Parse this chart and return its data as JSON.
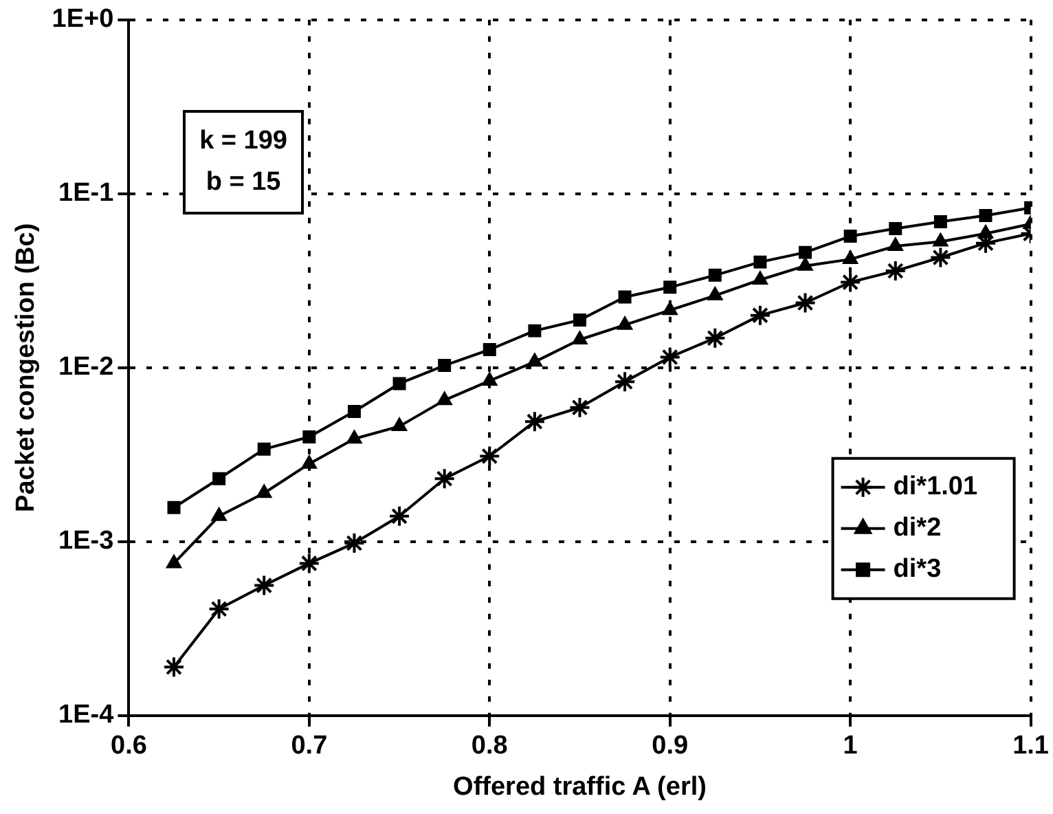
{
  "chart_data": {
    "type": "line",
    "xlabel": "Offered traffic A (erl)",
    "ylabel": "Packet congestion (Bc)",
    "annotations": [
      "k = 199",
      "b = 15"
    ],
    "x": [
      0.625,
      0.65,
      0.675,
      0.7,
      0.725,
      0.75,
      0.775,
      0.8,
      0.825,
      0.85,
      0.875,
      0.9,
      0.925,
      0.95,
      0.975,
      1.0,
      1.025,
      1.05,
      1.075,
      1.1
    ],
    "series": [
      {
        "name": "di*1.01",
        "color": "#000000",
        "marker": "cross",
        "values": [
          0.00019,
          0.00041,
          0.00056,
          0.00075,
          0.00098,
          0.0014,
          0.0023,
          0.0031,
          0.0049,
          0.0059,
          0.0083,
          0.0115,
          0.0148,
          0.02,
          0.0236,
          0.031,
          0.036,
          0.043,
          0.052,
          0.059
        ]
      },
      {
        "name": "di*2",
        "color": "#000000",
        "marker": "triangle",
        "values": [
          0.00075,
          0.0014,
          0.0019,
          0.0028,
          0.0039,
          0.0046,
          0.0065,
          0.0084,
          0.0108,
          0.0145,
          0.0176,
          0.0214,
          0.026,
          0.032,
          0.0385,
          0.042,
          0.05,
          0.053,
          0.059,
          0.067
        ]
      },
      {
        "name": "di*3",
        "color": "#000000",
        "marker": "square",
        "values": [
          0.00157,
          0.0023,
          0.0034,
          0.004,
          0.0056,
          0.0081,
          0.0103,
          0.0127,
          0.0163,
          0.0188,
          0.0255,
          0.029,
          0.034,
          0.0405,
          0.046,
          0.057,
          0.063,
          0.069,
          0.075,
          0.083
        ]
      }
    ],
    "xlim": [
      0.6,
      1.1
    ],
    "xticks": [
      0.6,
      0.7,
      0.8,
      0.9,
      1,
      1.1
    ],
    "ylim": [
      0.0001,
      1
    ],
    "yticks": [
      {
        "value": 0.0001,
        "label": "1E-4"
      },
      {
        "value": 0.001,
        "label": "1E-3"
      },
      {
        "value": 0.01,
        "label": "1E-2"
      },
      {
        "value": 0.1,
        "label": "1E-1"
      },
      {
        "value": 1,
        "label": "1E+0"
      }
    ],
    "log": "y",
    "grid": true,
    "legend": "bottom right",
    "line_style": "solid"
  }
}
